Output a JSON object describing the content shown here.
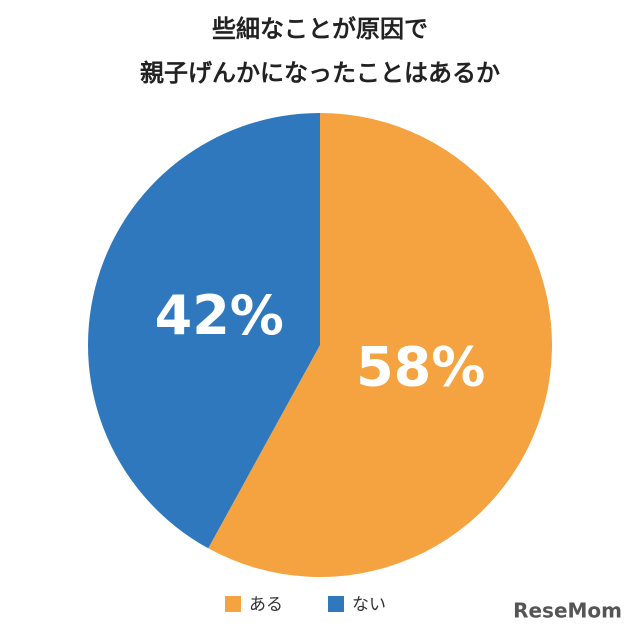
{
  "chart_data": {
    "type": "pie",
    "title": [
      "些細なことが原因で",
      "親子げんかになったことはあるか"
    ],
    "categories": [
      "ある",
      "ない"
    ],
    "values": [
      58,
      42
    ],
    "value_labels": [
      "58%",
      "42%"
    ],
    "colors": [
      "#f4a340",
      "#2f78bd"
    ]
  },
  "watermark": "ReseMom"
}
